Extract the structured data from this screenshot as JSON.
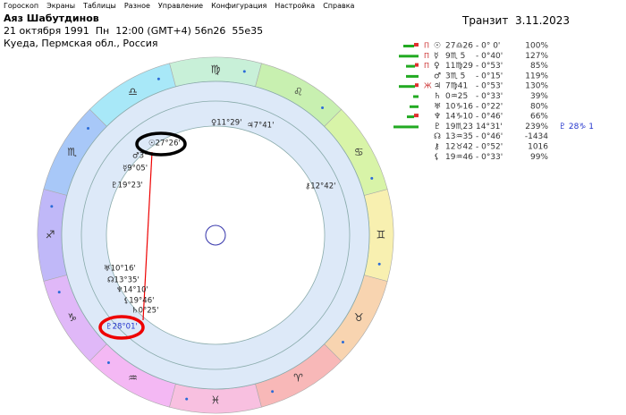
{
  "menu": [
    "Гороскоп",
    "Экраны",
    "Таблицы",
    "Разное",
    "Управление",
    "Конфигурация",
    "Настройка",
    "Справка"
  ],
  "header": {
    "name": "Аяз Шабутдинов",
    "birth": "21 октября 1991  Пн  12:00 (GMT+4) 56n26  55e35",
    "place": "Куеда, Пермская обл., Россия",
    "transit": "Транзит  3.11.2023"
  },
  "table": {
    "rows": [
      {
        "marker": "Π",
        "planet": "☉",
        "position": "27♎26",
        "diff": "- 0° 0'",
        "percent": "100%"
      },
      {
        "marker": "Π",
        "planet": "☿",
        "position": "9♏ 5",
        "diff": "- 0°40'",
        "percent": "127%"
      },
      {
        "marker": "Π",
        "planet": "♀",
        "position": "11♍29",
        "diff": "- 0°53'",
        "percent": "85%"
      },
      {
        "planet": "♂",
        "position": "3♏ 5",
        "diff": "- 0°15'",
        "percent": "119%"
      },
      {
        "marker": "Ж",
        "planet": "♃",
        "position": "7♍41",
        "diff": "- 0°53'",
        "percent": "130%"
      },
      {
        "planet": "♄",
        "position": "0♒25",
        "diff": "- 0°33'",
        "percent": "39%"
      },
      {
        "planet": "♅",
        "position": "10♑16",
        "diff": "- 0°22'",
        "percent": "80%"
      },
      {
        "planet": "♆",
        "position": "14♑10",
        "diff": "- 0°46'",
        "percent": "66%"
      },
      {
        "planet": "♇",
        "position": "19♏23",
        "diff": "14°31'",
        "percent": "239%",
        "transit": "♇ 28♑ 1"
      },
      {
        "planet": "☊",
        "position": "13♒35",
        "diff": "- 0°46'",
        "percent": "-1434"
      },
      {
        "planet": "⚷",
        "position": "12♉42",
        "diff": "- 0°52'",
        "percent": "1016"
      },
      {
        "planet": "⚸",
        "position": "19♒46",
        "diff": "- 0°33'",
        "percent": "99%"
      }
    ]
  },
  "wheel": {
    "zodiac": [
      "♍",
      "♎",
      "♏",
      "♐",
      "♑",
      "♒",
      "♓",
      "♈",
      "♉",
      "♊",
      "♋",
      "♌"
    ],
    "labels": [
      "♀11°29'",
      "♃7°41'",
      "☉27°26'",
      "♂3°",
      "☿9°05'",
      "♇19°23'",
      "⚷12°42'",
      "♅10°16'",
      "☊13°35'",
      "♆14°10'",
      "⚸19°46'",
      "♄0°25'",
      "♇28°01'"
    ]
  }
}
